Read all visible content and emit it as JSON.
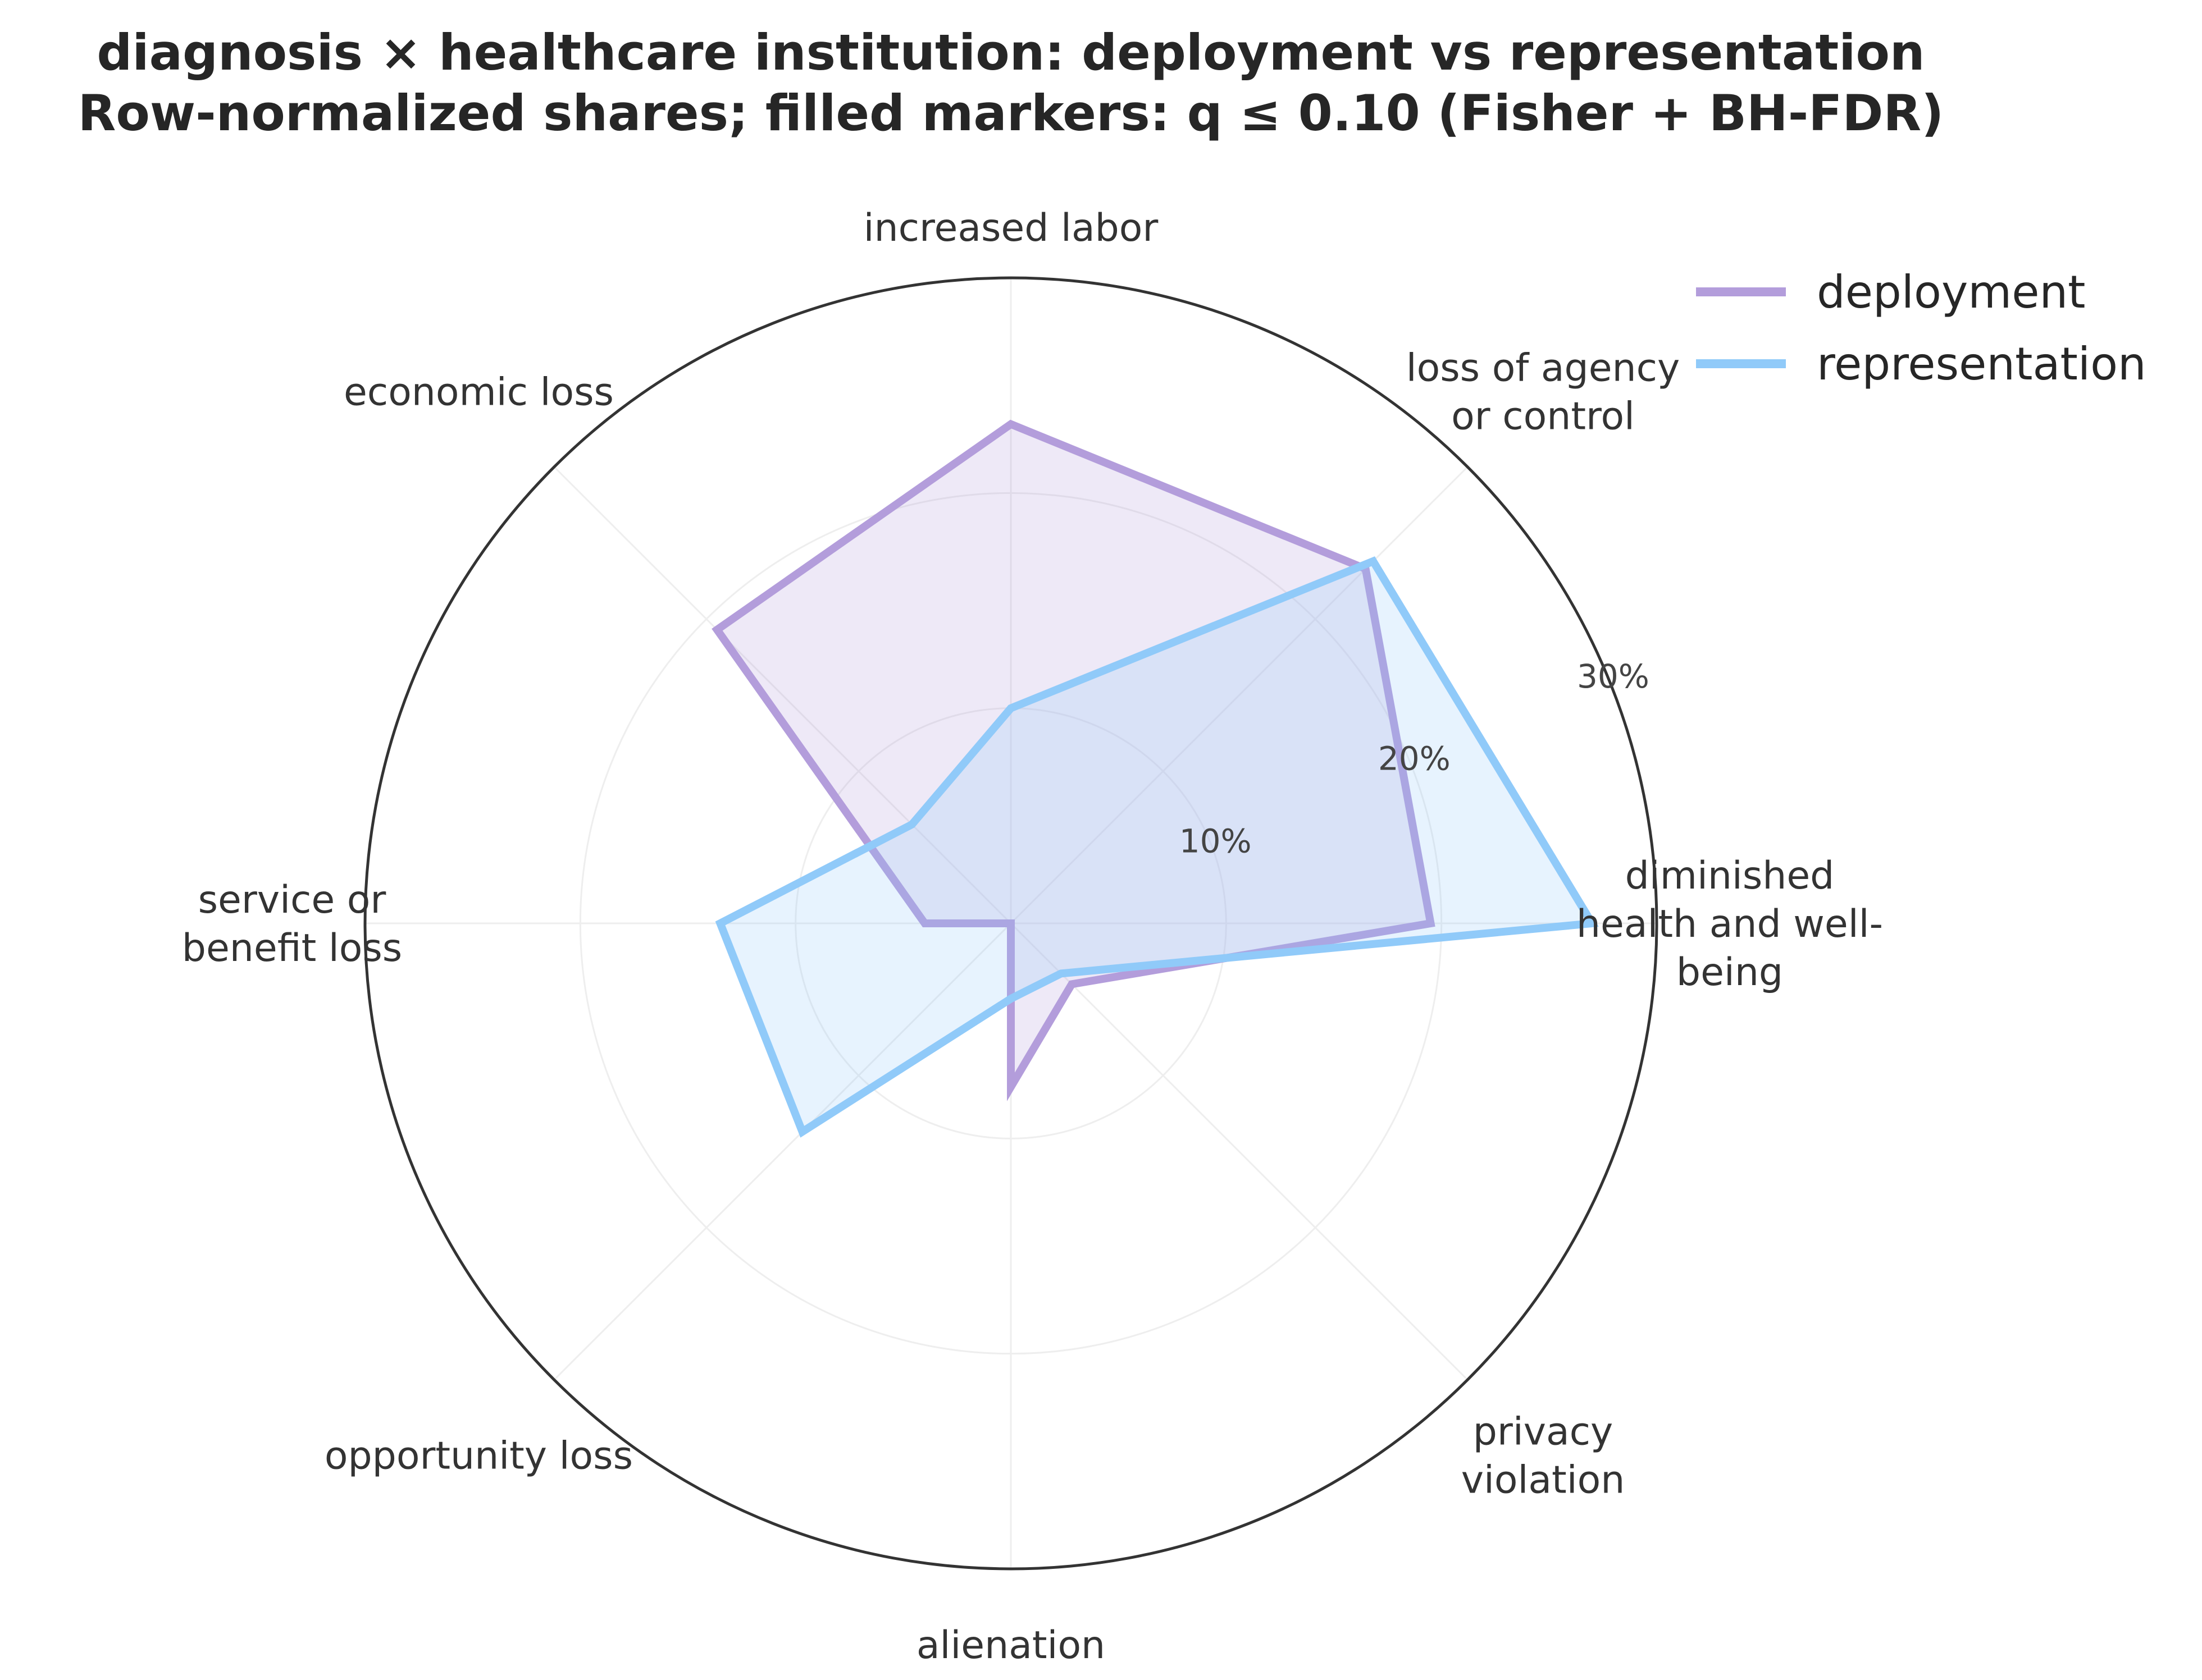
{
  "title": {
    "line1": "diagnosis × healthcare institution: deployment vs representation",
    "line2": "Row-normalized shares; filled markers: q ≤ 0.10 (Fisher + BH-FDR)"
  },
  "colors": {
    "deployment": "#b39ddb",
    "representation": "#90caf9",
    "outer_ring": "#333333",
    "grid": "#eeeeee"
  },
  "chart_data": {
    "type": "radar",
    "title": "diagnosis × healthcare institution: deployment vs representation",
    "subtitle": "Row-normalized shares; filled markers: q ≤ 0.10 (Fisher + BH-FDR)",
    "categories": [
      [
        "diminished",
        "health and well-",
        "being"
      ],
      [
        "loss of agency",
        "or control"
      ],
      [
        "increased labor"
      ],
      [
        "economic loss"
      ],
      [
        "service or",
        "benefit loss"
      ],
      [
        "opportunity loss"
      ],
      [
        "alienation"
      ],
      [
        "privacy",
        "violation"
      ]
    ],
    "radial_max": 30,
    "radial_ticks": [
      10,
      20,
      30
    ],
    "radial_tick_labels": [
      "10%",
      "20%",
      "30%"
    ],
    "legend_position": "top-right",
    "series": [
      {
        "name": "deployment",
        "values": [
          19.5,
          23.3,
          23.2,
          19.3,
          4.0,
          0.0,
          7.6,
          4.0
        ]
      },
      {
        "name": "representation",
        "values": [
          27.0,
          23.8,
          10.0,
          6.5,
          13.5,
          13.7,
          3.5,
          3.3
        ]
      }
    ]
  }
}
